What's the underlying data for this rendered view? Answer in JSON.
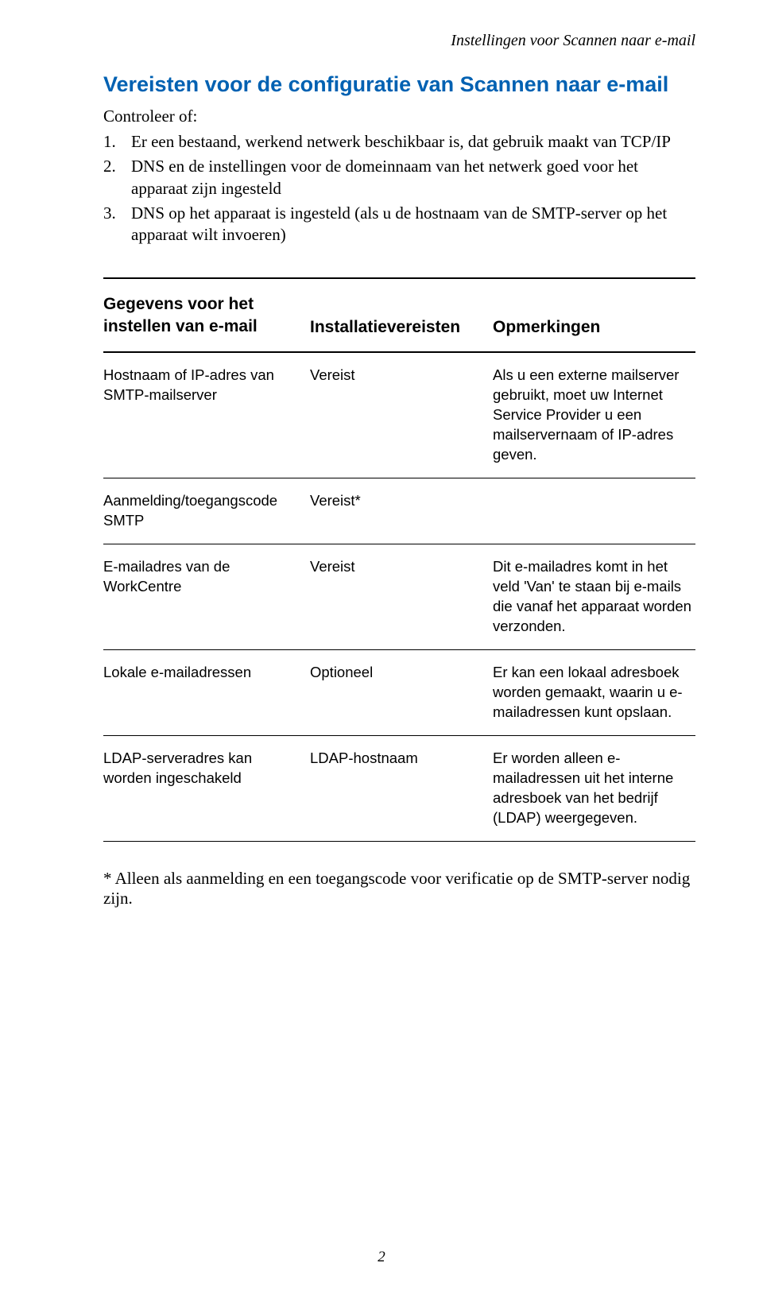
{
  "header": {
    "running_title": "Instellingen voor Scannen naar e-mail"
  },
  "section": {
    "title": "Vereisten voor de configuratie van Scannen naar e-mail",
    "intro": "Controleer of:",
    "items": [
      {
        "num": "1.",
        "text": "Er een bestaand, werkend netwerk beschikbaar is, dat gebruik maakt van TCP/IP"
      },
      {
        "num": "2.",
        "text": "DNS en de instellingen voor de domeinnaam van het netwerk goed voor het apparaat zijn ingesteld"
      },
      {
        "num": "3.",
        "text": "DNS op het apparaat is ingesteld (als u de hostnaam van de SMTP-server op het apparaat wilt invoeren)"
      }
    ]
  },
  "table": {
    "headers": {
      "col1_line1": "Gegevens voor het",
      "col1_line2": "instellen van e-mail",
      "col2": "Installatievereisten",
      "col3": "Opmerkingen"
    },
    "rows": [
      {
        "c1": "Hostnaam of IP-adres van SMTP-mailserver",
        "c2": "Vereist",
        "c3": "Als u een externe mailserver gebruikt, moet uw Internet Service Provider u een mailservernaam of IP-adres geven."
      },
      {
        "c1": "Aanmelding/toegangscode SMTP",
        "c2": "Vereist*",
        "c3": ""
      },
      {
        "c1": "E-mailadres van de WorkCentre",
        "c2": "Vereist",
        "c3": "Dit e-mailadres komt in het veld 'Van' te staan bij e-mails die vanaf het apparaat worden verzonden."
      },
      {
        "c1": "Lokale e-mailadressen",
        "c2": "Optioneel",
        "c3": "Er kan een lokaal adresboek worden gemaakt, waarin u e-mailadressen kunt opslaan."
      },
      {
        "c1": "LDAP-serveradres kan worden ingeschakeld",
        "c2": "LDAP-hostnaam",
        "c3": "Er worden alleen e-mailadressen uit het interne adresboek van het bedrijf (LDAP) weergegeven."
      }
    ]
  },
  "footnote": "* Alleen als aanmelding en een toegangscode voor verificatie op de SMTP-server nodig zijn.",
  "page_number": "2",
  "colors": {
    "title_color": "#0061b2",
    "text_color": "#000000",
    "background": "#ffffff"
  }
}
